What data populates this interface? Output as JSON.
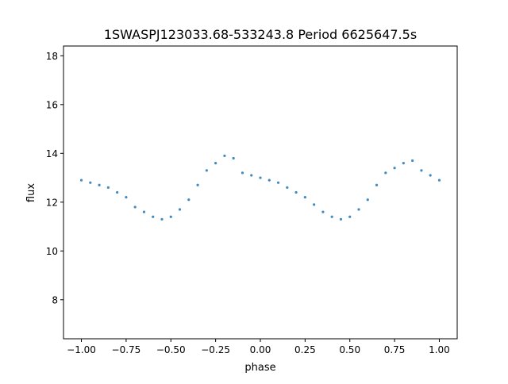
{
  "chart_data": {
    "type": "scatter",
    "title": "1SWASPJ123033.68-533243.8 Period 6625647.5s",
    "xlabel": "phase",
    "ylabel": "flux",
    "xlim": [
      -1.1,
      1.1
    ],
    "ylim": [
      6.4,
      18.4
    ],
    "x_ticks": [
      -1.0,
      -0.75,
      -0.5,
      -0.25,
      0.0,
      0.25,
      0.5,
      0.75,
      1.0
    ],
    "x_tick_labels": [
      "−1.00",
      "−0.75",
      "−0.50",
      "−0.25",
      "0.00",
      "0.25",
      "0.50",
      "0.75",
      "1.00"
    ],
    "y_ticks": [
      8,
      10,
      12,
      14,
      16,
      18
    ],
    "y_tick_labels": [
      "8",
      "10",
      "12",
      "14",
      "16",
      "18"
    ],
    "grid": false,
    "legend": "none",
    "marker_color": "#1f77b4",
    "series": [
      {
        "x": [
          -1.0,
          -0.95,
          -0.9,
          -0.85,
          -0.8,
          -0.75,
          -0.7,
          -0.65,
          -0.6,
          -0.55,
          -0.5,
          -0.45,
          -0.4,
          -0.35,
          -0.3,
          -0.25,
          -0.2,
          -0.15,
          -0.1,
          -0.05,
          0.0,
          0.05,
          0.1,
          0.15,
          0.2,
          0.25,
          0.3,
          0.35,
          0.4,
          0.45,
          0.5,
          0.55,
          0.6,
          0.65,
          0.7,
          0.75,
          0.8,
          0.85,
          0.9,
          0.95,
          1.0
        ],
        "y": [
          12.9,
          12.8,
          12.7,
          12.6,
          12.4,
          12.2,
          11.8,
          11.6,
          11.4,
          11.3,
          11.4,
          11.7,
          12.1,
          12.7,
          13.3,
          13.6,
          13.9,
          13.8,
          13.2,
          13.1,
          13.0,
          12.9,
          12.8,
          12.6,
          12.4,
          12.2,
          11.9,
          11.6,
          11.4,
          11.3,
          11.4,
          11.7,
          12.1,
          12.7,
          13.2,
          13.4,
          13.6,
          13.7,
          13.3,
          13.1,
          12.9
        ]
      }
    ]
  }
}
